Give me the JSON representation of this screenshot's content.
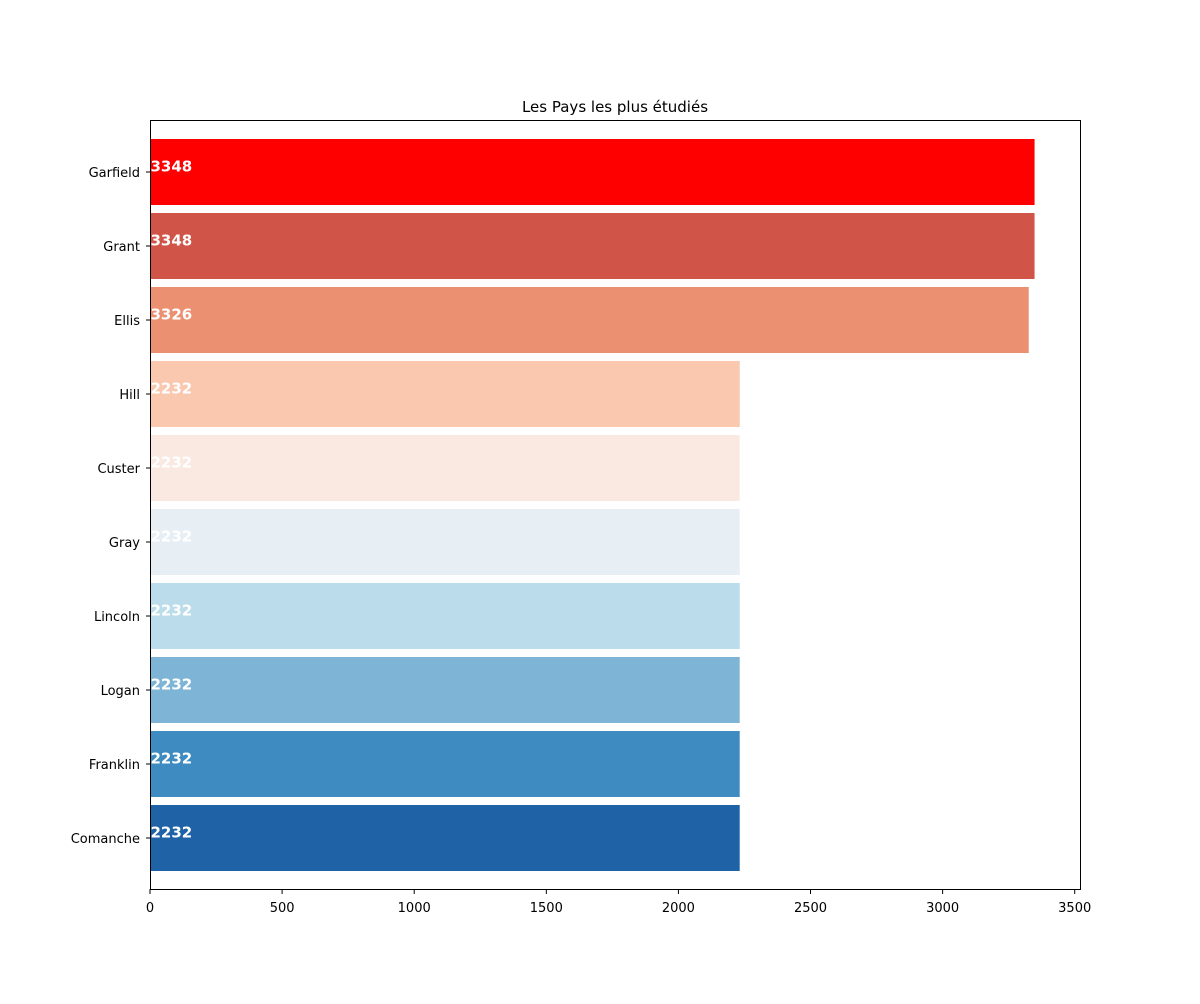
{
  "chart_data": {
    "type": "bar",
    "orientation": "horizontal",
    "title": "Les Pays les plus étudiés",
    "xlabel": "",
    "ylabel": "",
    "categories": [
      "Garfield",
      "Grant",
      "Ellis",
      "Hill",
      "Custer",
      "Gray",
      "Lincoln",
      "Logan",
      "Franklin",
      "Comanche"
    ],
    "values": [
      3348,
      3348,
      3326,
      2232,
      2232,
      2232,
      2232,
      2232,
      2232,
      2232
    ],
    "data_labels": [
      "3348",
      "3348",
      "3326",
      "2232",
      "2232",
      "2232",
      "2232",
      "2232",
      "2232",
      "2232"
    ],
    "colors": [
      "#ff0000",
      "#d05548",
      "#eb9172",
      "#f9c8ae",
      "#fae9e1",
      "#e7eef4",
      "#bbdcea",
      "#7eb5d6",
      "#3d8bc0",
      "#1f62a6"
    ],
    "data_label_color": "#ffffff",
    "xlim": [
      0,
      3520
    ],
    "xticks": [
      0,
      500,
      1000,
      1500,
      2000,
      2500,
      3000,
      3500
    ],
    "xtick_labels": [
      "0",
      "500",
      "1000",
      "1500",
      "2000",
      "2500",
      "3000",
      "3500"
    ],
    "grid": false,
    "legend": "none"
  }
}
